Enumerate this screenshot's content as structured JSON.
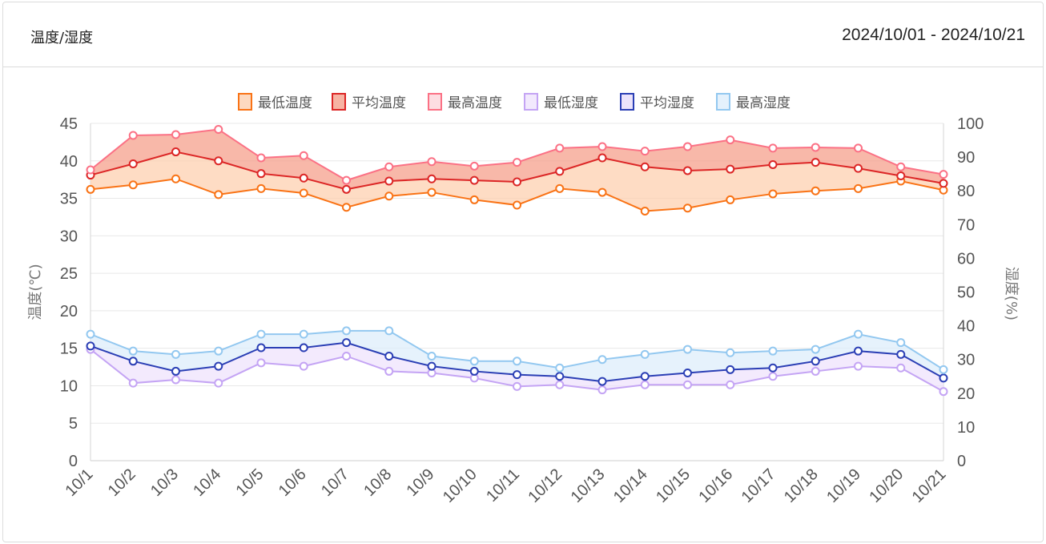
{
  "header": {
    "title": "温度/湿度",
    "date_range": "2024/10/01 - 2024/10/21"
  },
  "chart_data": {
    "type": "line",
    "categories": [
      "10/1",
      "10/2",
      "10/3",
      "10/4",
      "10/5",
      "10/6",
      "10/7",
      "10/8",
      "10/9",
      "10/10",
      "10/11",
      "10/12",
      "10/13",
      "10/14",
      "10/15",
      "10/16",
      "10/17",
      "10/18",
      "10/19",
      "10/20",
      "10/21"
    ],
    "y_left": {
      "label": "温度(℃)",
      "min": 0,
      "max": 45,
      "ticks": [
        "0",
        "5",
        "10",
        "15",
        "20",
        "25",
        "30",
        "35",
        "40",
        "45"
      ]
    },
    "y_right": {
      "label": "湿度(%)",
      "min": 0,
      "max": 100,
      "ticks": [
        "0",
        "10",
        "20",
        "30",
        "40",
        "50",
        "60",
        "70",
        "80",
        "90",
        "100"
      ]
    },
    "legend_position": "top-center",
    "series": [
      {
        "name": "最低温度",
        "axis": "left",
        "color": "#f97316",
        "fill": "#fdd0b0",
        "values": [
          36.2,
          36.8,
          37.6,
          35.5,
          36.3,
          35.7,
          33.8,
          35.3,
          35.8,
          34.8,
          34.1,
          36.3,
          35.8,
          33.3,
          33.7,
          34.8,
          35.6,
          36.0,
          36.3,
          37.3,
          36.1
        ]
      },
      {
        "name": "平均温度",
        "axis": "left",
        "color": "#dc2626",
        "fill": "#f5a08c",
        "values": [
          38.1,
          39.6,
          41.2,
          40.0,
          38.3,
          37.7,
          36.2,
          37.3,
          37.6,
          37.4,
          37.2,
          38.6,
          40.4,
          39.2,
          38.7,
          38.9,
          39.5,
          39.8,
          39.0,
          38.0,
          37.0
        ]
      },
      {
        "name": "最高温度",
        "axis": "left",
        "color": "#fb7185",
        "fill": "#fdd5db",
        "values": [
          38.8,
          43.4,
          43.5,
          44.2,
          40.4,
          40.7,
          37.4,
          39.2,
          39.9,
          39.3,
          39.8,
          41.7,
          41.9,
          41.3,
          41.9,
          42.8,
          41.7,
          41.8,
          41.7,
          39.2,
          38.2
        ]
      },
      {
        "name": "最低湿度",
        "axis": "right",
        "color": "#c4a4f4",
        "fill": "#efe3fc",
        "values": [
          33,
          23,
          24,
          23,
          29,
          28,
          31,
          26.5,
          26,
          24.5,
          22,
          22.5,
          21,
          22.5,
          22.5,
          22.5,
          25,
          26.5,
          28,
          27.5,
          20.5
        ]
      },
      {
        "name": "平均湿度",
        "axis": "right",
        "color": "#2b3fb5",
        "fill": "#e6dcfa",
        "values": [
          34,
          29.5,
          26.5,
          28,
          33.5,
          33.5,
          35,
          31,
          28,
          26.5,
          25.5,
          25,
          23.5,
          25,
          26,
          27,
          27.5,
          29.5,
          32.5,
          31.5,
          24.5
        ]
      },
      {
        "name": "最高湿度",
        "axis": "right",
        "color": "#93c8f0",
        "fill": "#ddeefb",
        "values": [
          37.5,
          32.5,
          31.5,
          32.5,
          37.5,
          37.5,
          38.5,
          38.5,
          31,
          29.5,
          29.5,
          27.5,
          30,
          31.5,
          33,
          32,
          32.5,
          33,
          37.5,
          35,
          27
        ]
      }
    ]
  }
}
